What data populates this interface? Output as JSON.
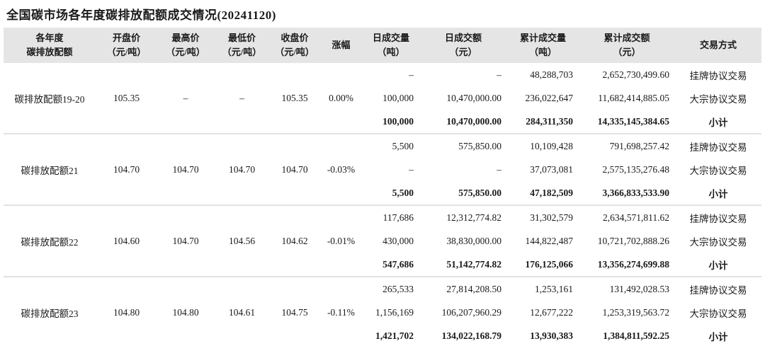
{
  "title": "全国碳市场各年度碳排放配额成交情况(20241120)",
  "colors": {
    "header_bg": "#e5e5e5",
    "separator": "#e2e2e2",
    "text": "#1a1a1a"
  },
  "table": {
    "headers": [
      {
        "label": "各年度",
        "sub": "碳排放配额"
      },
      {
        "label": "开盘价",
        "sub": "（元/吨）"
      },
      {
        "label": "最高价",
        "sub": "（元/吨）"
      },
      {
        "label": "最低价",
        "sub": "（元/吨）"
      },
      {
        "label": "收盘价",
        "sub": "（元/吨）"
      },
      {
        "label": "涨幅",
        "sub": ""
      },
      {
        "label": "日成交量",
        "sub": "（吨）"
      },
      {
        "label": "日成交额",
        "sub": "（元）"
      },
      {
        "label": "累计成交量",
        "sub": "（吨）"
      },
      {
        "label": "累计成交额",
        "sub": "（元）"
      },
      {
        "label": "交易方式",
        "sub": ""
      }
    ],
    "groups": [
      {
        "name": "碳排放配额19-20",
        "open": "105.35",
        "high": "–",
        "low": "–",
        "close": "105.35",
        "change": "0.00%",
        "rows": [
          {
            "daily_volume": "–",
            "daily_amount": "–",
            "cum_volume": "48,288,703",
            "cum_amount": "2,652,730,499.60",
            "method": "挂牌协议交易",
            "subtotal": false
          },
          {
            "daily_volume": "100,000",
            "daily_amount": "10,470,000.00",
            "cum_volume": "236,022,647",
            "cum_amount": "11,682,414,885.05",
            "method": "大宗协议交易",
            "subtotal": false
          },
          {
            "daily_volume": "100,000",
            "daily_amount": "10,470,000.00",
            "cum_volume": "284,311,350",
            "cum_amount": "14,335,145,384.65",
            "method": "小计",
            "subtotal": true
          }
        ]
      },
      {
        "name": "碳排放配额21",
        "open": "104.70",
        "high": "104.70",
        "low": "104.70",
        "close": "104.70",
        "change": "-0.03%",
        "rows": [
          {
            "daily_volume": "5,500",
            "daily_amount": "575,850.00",
            "cum_volume": "10,109,428",
            "cum_amount": "791,698,257.42",
            "method": "挂牌协议交易",
            "subtotal": false
          },
          {
            "daily_volume": "–",
            "daily_amount": "–",
            "cum_volume": "37,073,081",
            "cum_amount": "2,575,135,276.48",
            "method": "大宗协议交易",
            "subtotal": false
          },
          {
            "daily_volume": "5,500",
            "daily_amount": "575,850.00",
            "cum_volume": "47,182,509",
            "cum_amount": "3,366,833,533.90",
            "method": "小计",
            "subtotal": true
          }
        ]
      },
      {
        "name": "碳排放配额22",
        "open": "104.60",
        "high": "104.70",
        "low": "104.56",
        "close": "104.62",
        "change": "-0.01%",
        "rows": [
          {
            "daily_volume": "117,686",
            "daily_amount": "12,312,774.82",
            "cum_volume": "31,302,579",
            "cum_amount": "2,634,571,811.62",
            "method": "挂牌协议交易",
            "subtotal": false
          },
          {
            "daily_volume": "430,000",
            "daily_amount": "38,830,000.00",
            "cum_volume": "144,822,487",
            "cum_amount": "10,721,702,888.26",
            "method": "大宗协议交易",
            "subtotal": false
          },
          {
            "daily_volume": "547,686",
            "daily_amount": "51,142,774.82",
            "cum_volume": "176,125,066",
            "cum_amount": "13,356,274,699.88",
            "method": "小计",
            "subtotal": true
          }
        ]
      },
      {
        "name": "碳排放配额23",
        "open": "104.80",
        "high": "104.80",
        "low": "104.61",
        "close": "104.75",
        "change": "-0.11%",
        "rows": [
          {
            "daily_volume": "265,533",
            "daily_amount": "27,814,208.50",
            "cum_volume": "1,253,161",
            "cum_amount": "131,492,028.53",
            "method": "挂牌协议交易",
            "subtotal": false
          },
          {
            "daily_volume": "1,156,169",
            "daily_amount": "106,207,960.29",
            "cum_volume": "12,677,222",
            "cum_amount": "1,253,319,563.72",
            "method": "大宗协议交易",
            "subtotal": false
          },
          {
            "daily_volume": "1,421,702",
            "daily_amount": "134,022,168.79",
            "cum_volume": "13,930,383",
            "cum_amount": "1,384,811,592.25",
            "method": "小计",
            "subtotal": true
          }
        ]
      }
    ]
  }
}
